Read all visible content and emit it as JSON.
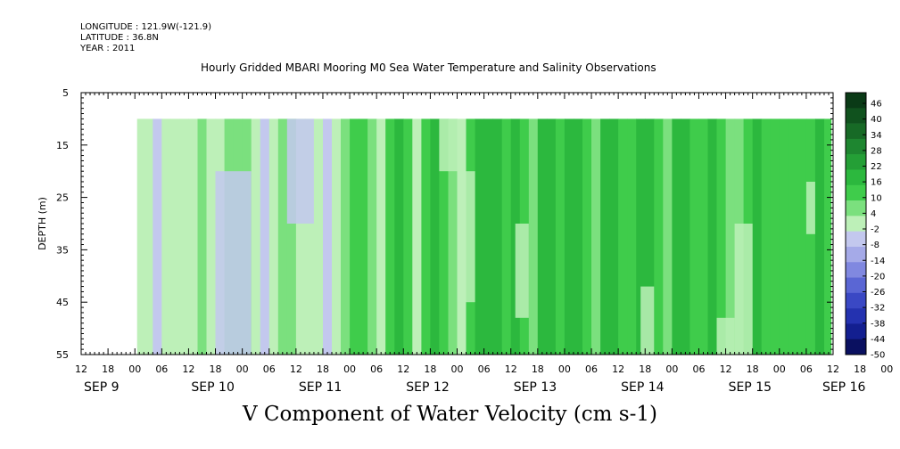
{
  "header": {
    "longitude": "LONGITUDE : 121.9W(-121.9)",
    "latitude": "LATITUDE : 36.8N",
    "year": "YEAR : 2011"
  },
  "chart_data": {
    "type": "heatmap",
    "title": "Hourly Gridded MBARI Mooring M0 Sea Water Temperature and Salinity Observations",
    "xlabel": "",
    "ylabel": "DEPTH (m)",
    "caption": "V Component of Water Velocity (cm s-1)",
    "ylim": [
      5,
      55
    ],
    "y_reversed": true,
    "y_ticks": [
      5,
      15,
      25,
      35,
      45,
      55
    ],
    "y_tick_labels": [
      "5",
      "15",
      "25",
      "35",
      "45",
      "55"
    ],
    "data_depth_range": [
      10,
      55
    ],
    "xlim_hours_from_sep9_00": [
      6,
      174
    ],
    "x_hour_labels": [
      "12",
      "18",
      "00",
      "06",
      "12",
      "18",
      "00",
      "06",
      "12",
      "18",
      "00",
      "06",
      "12",
      "18",
      "00",
      "06",
      "12",
      "18",
      "00",
      "06",
      "12",
      "18",
      "00",
      "06",
      "12",
      "18",
      "00",
      "06",
      "12",
      "18",
      "00",
      "06"
    ],
    "x_date_labels": [
      "SEP  9",
      "SEP 10",
      "SEP 11",
      "SEP 12",
      "SEP 13",
      "SEP 14",
      "SEP 15",
      "SEP 16"
    ],
    "colorbar": {
      "labels": [
        "46",
        "40",
        "34",
        "28",
        "22",
        "16",
        "10",
        "4",
        "-2",
        "-8",
        "-14",
        "-20",
        "-26",
        "-32",
        "-38",
        "-44",
        "-50"
      ],
      "colors": [
        "#0a3a16",
        "#10521e",
        "#176a26",
        "#1e8630",
        "#249f36",
        "#2cb83e",
        "#3fcc4b",
        "#7be07e",
        "#bdf0b8",
        "#c3c8ee",
        "#a5aae8",
        "#8088e0",
        "#5a66d4",
        "#3a48c4",
        "#2432b0",
        "#131f90",
        "#0a1060"
      ]
    },
    "bands": [
      {
        "h": 18.5,
        "v": -5
      },
      {
        "h": 20,
        "v": -3
      },
      {
        "h": 22,
        "v": -9
      },
      {
        "h": 24,
        "v": -6
      },
      {
        "h": 26,
        "v": -3
      },
      {
        "h": 28,
        "v": -8
      },
      {
        "h": 30,
        "v": -4
      },
      {
        "h": 32,
        "v": -1
      },
      {
        "h": 34,
        "v": -6
      },
      {
        "h": 36,
        "v": -3
      },
      {
        "h": 38,
        "v": 1
      },
      {
        "h": 40,
        "v": 3
      },
      {
        "h": 42,
        "v": -2
      },
      {
        "h": 44,
        "v": -7
      },
      {
        "h": 46,
        "v": -9
      },
      {
        "h": 48,
        "v": -5
      },
      {
        "h": 50,
        "v": -2
      },
      {
        "h": 52,
        "v": 1
      },
      {
        "h": 54,
        "v": -3
      },
      {
        "h": 56,
        "v": -6
      },
      {
        "h": 58,
        "v": -4
      },
      {
        "h": 60,
        "v": -9
      },
      {
        "h": 62,
        "v": -7
      },
      {
        "h": 64,
        "v": 0
      },
      {
        "h": 66,
        "v": 5
      },
      {
        "h": 68,
        "v": 9
      },
      {
        "h": 70,
        "v": 3
      },
      {
        "h": 72,
        "v": -4
      },
      {
        "h": 74,
        "v": 6
      },
      {
        "h": 76,
        "v": 12
      },
      {
        "h": 78,
        "v": 4
      },
      {
        "h": 80,
        "v": -3
      },
      {
        "h": 82,
        "v": 8
      },
      {
        "h": 84,
        "v": 12
      },
      {
        "h": 86,
        "v": 7
      },
      {
        "h": 88,
        "v": 3
      },
      {
        "h": 90,
        "v": -4
      },
      {
        "h": 92,
        "v": 6
      },
      {
        "h": 94,
        "v": 12
      },
      {
        "h": 96,
        "v": 15
      },
      {
        "h": 98,
        "v": 10
      },
      {
        "h": 100,
        "v": 6
      },
      {
        "h": 102,
        "v": 12
      },
      {
        "h": 104,
        "v": 8
      },
      {
        "h": 106,
        "v": 2
      },
      {
        "h": 108,
        "v": 12
      },
      {
        "h": 110,
        "v": 14
      },
      {
        "h": 112,
        "v": 8
      },
      {
        "h": 114,
        "v": 13
      },
      {
        "h": 116,
        "v": 10
      },
      {
        "h": 118,
        "v": 6
      },
      {
        "h": 120,
        "v": 3
      },
      {
        "h": 122,
        "v": 12
      },
      {
        "h": 124,
        "v": 15
      },
      {
        "h": 126,
        "v": 9
      },
      {
        "h": 128,
        "v": 4
      },
      {
        "h": 130,
        "v": 12
      },
      {
        "h": 132,
        "v": 15
      },
      {
        "h": 134,
        "v": 8
      },
      {
        "h": 136,
        "v": 3
      },
      {
        "h": 138,
        "v": 10
      },
      {
        "h": 140,
        "v": 14
      },
      {
        "h": 142,
        "v": 9
      },
      {
        "h": 144,
        "v": 6
      },
      {
        "h": 146,
        "v": 12
      },
      {
        "h": 148,
        "v": 8
      },
      {
        "h": 150,
        "v": 3
      },
      {
        "h": 152,
        "v": -2
      },
      {
        "h": 154,
        "v": 6
      },
      {
        "h": 156,
        "v": 10
      },
      {
        "h": 158,
        "v": 4
      },
      {
        "h": 160,
        "v": 7
      },
      {
        "h": 162,
        "v": 5
      },
      {
        "h": 164,
        "v": 9
      },
      {
        "h": 166,
        "v": 4
      },
      {
        "h": 168,
        "v": 6
      },
      {
        "h": 170,
        "v": 10
      },
      {
        "h": 172,
        "v": 5
      },
      {
        "h": 173.5,
        "v": 7
      }
    ],
    "patches": [
      {
        "h0": 36,
        "h1": 44,
        "d0": 20,
        "d1": 55,
        "v": -9
      },
      {
        "h0": 52,
        "h1": 58,
        "d0": 10,
        "d1": 30,
        "v": -12
      },
      {
        "h0": 86,
        "h1": 90,
        "d0": 10,
        "d1": 20,
        "v": -5
      },
      {
        "h0": 90,
        "h1": 94,
        "d0": 20,
        "d1": 45,
        "v": -3
      },
      {
        "h0": 103,
        "h1": 106,
        "d0": 30,
        "d1": 48,
        "v": -4
      },
      {
        "h0": 131,
        "h1": 134,
        "d0": 42,
        "d1": 55,
        "v": -4
      },
      {
        "h0": 148,
        "h1": 152,
        "d0": 48,
        "d1": 55,
        "v": -5
      },
      {
        "h0": 152,
        "h1": 156,
        "d0": 30,
        "d1": 55,
        "v": -3
      },
      {
        "h0": 168,
        "h1": 170,
        "d0": 22,
        "d1": 32,
        "v": -6
      }
    ]
  }
}
